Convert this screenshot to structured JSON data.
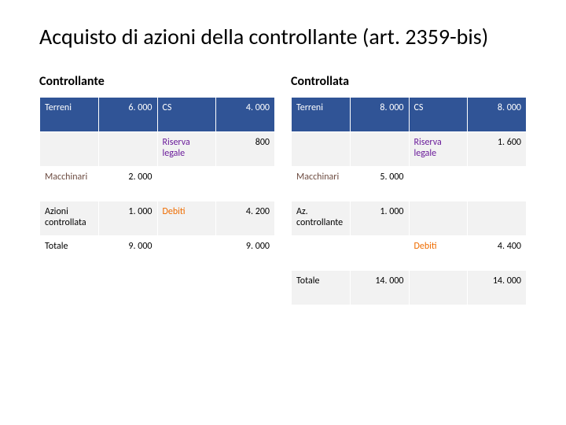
{
  "title": "Acquisto di azioni della controllante (art. 2359-bis)",
  "left": {
    "heading": "Controllante",
    "rows": [
      {
        "c0": {
          "t": "Terreni",
          "cls": "green"
        },
        "c1": {
          "t": "6. 000",
          "cls": "num"
        },
        "c2": {
          "t": "CS",
          "cls": "teal"
        },
        "c3": {
          "t": "4. 000",
          "cls": "num"
        },
        "rowcls": "hi-blue"
      },
      {
        "c0": {
          "t": ""
        },
        "c1": {
          "t": ""
        },
        "c2": {
          "t": "Riserva legale",
          "cls": "purple"
        },
        "c3": {
          "t": "800",
          "cls": "num"
        },
        "rowcls": "alt"
      },
      {
        "c0": {
          "t": "Macchinari",
          "cls": "brown"
        },
        "c1": {
          "t": "2. 000",
          "cls": "num"
        },
        "c2": {
          "t": ""
        },
        "c3": {
          "t": ""
        }
      },
      {
        "c0": {
          "t": "Azioni controllata",
          "cls": "black"
        },
        "c1": {
          "t": "1. 000",
          "cls": "num"
        },
        "c2": {
          "t": "Debiti",
          "cls": "orange"
        },
        "c3": {
          "t": "4. 200",
          "cls": "num"
        },
        "rowcls": "alt"
      },
      {
        "c0": {
          "t": "Totale",
          "cls": "black"
        },
        "c1": {
          "t": "9. 000",
          "cls": "num"
        },
        "c2": {
          "t": ""
        },
        "c3": {
          "t": "9. 000",
          "cls": "num"
        }
      }
    ]
  },
  "right": {
    "heading": "Controllata",
    "rows": [
      {
        "c0": {
          "t": "Terreni",
          "cls": "green"
        },
        "c1": {
          "t": "8. 000",
          "cls": "num"
        },
        "c2": {
          "t": "CS",
          "cls": "teal"
        },
        "c3": {
          "t": "8. 000",
          "cls": "num"
        },
        "rowcls": "hi-blue"
      },
      {
        "c0": {
          "t": ""
        },
        "c1": {
          "t": ""
        },
        "c2": {
          "t": "Riserva legale",
          "cls": "purple"
        },
        "c3": {
          "t": "1. 600",
          "cls": "num"
        },
        "rowcls": "alt"
      },
      {
        "c0": {
          "t": "Macchinari",
          "cls": "brown"
        },
        "c1": {
          "t": "5. 000",
          "cls": "num"
        },
        "c2": {
          "t": ""
        },
        "c3": {
          "t": ""
        }
      },
      {
        "c0": {
          "t": "Az. controllante",
          "cls": "black"
        },
        "c1": {
          "t": "1. 000",
          "cls": "num"
        },
        "c2": {
          "t": ""
        },
        "c3": {
          "t": ""
        },
        "rowcls": "alt"
      },
      {
        "c0": {
          "t": ""
        },
        "c1": {
          "t": ""
        },
        "c2": {
          "t": "Debiti",
          "cls": "orange"
        },
        "c3": {
          "t": "4. 400",
          "cls": "num"
        }
      },
      {
        "c0": {
          "t": "Totale",
          "cls": "black"
        },
        "c1": {
          "t": "14. 000",
          "cls": "num"
        },
        "c2": {
          "t": ""
        },
        "c3": {
          "t": "14. 000",
          "cls": "num"
        },
        "rowcls": "alt"
      }
    ]
  },
  "colors": {
    "highlight_bg": "#305496",
    "alt_bg": "#f2f2f2",
    "text_green": "#2e7d32",
    "text_teal": "#00897b",
    "text_purple": "#6a1b9a",
    "text_brown": "#6d4c41",
    "text_orange": "#ef6c00"
  },
  "layout": {
    "title_fontsize": 28,
    "heading_fontsize": 16,
    "cell_fontsize": 12
  }
}
